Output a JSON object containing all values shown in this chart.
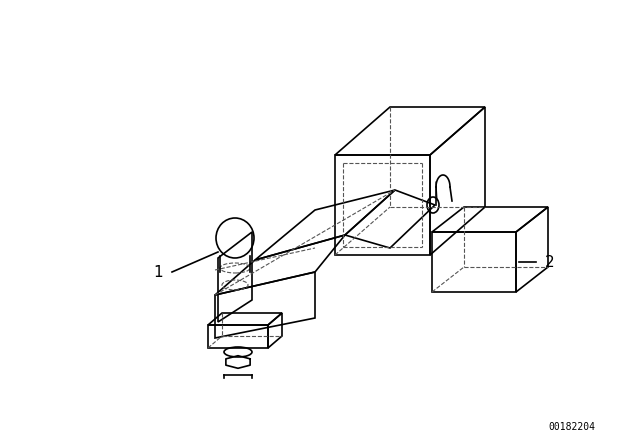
{
  "bg_color": "#ffffff",
  "line_color": "#000000",
  "dashed_color": "#555555",
  "label1": "1",
  "label2": "2",
  "doc_number": "00182204",
  "fig_width": 6.4,
  "fig_height": 4.48,
  "dpi": 100
}
